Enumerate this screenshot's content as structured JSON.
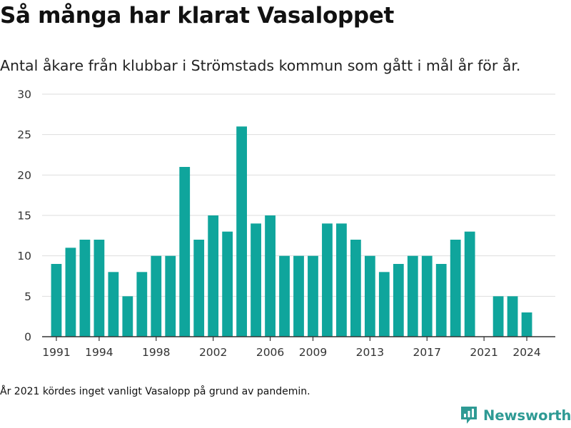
{
  "title": "Så många har klarat Vasaloppet",
  "subtitle": "Antal åkare från klubbar i Strömstads kommun som gått i mål år för år.",
  "footnote": "År 2021 kördes inget vanligt Vasalopp på grund av pandemin.",
  "brand": {
    "name": "Newsworthy",
    "icon": "newsworthy-bar-chart-icon"
  },
  "colors": {
    "bar": "#0fa59c",
    "grid": "#dddddd",
    "axis": "#333333",
    "brand": "#2e9a94"
  },
  "chart_data": {
    "type": "bar",
    "categories": [
      1991,
      1992,
      1993,
      1994,
      1995,
      1996,
      1997,
      1998,
      1999,
      2000,
      2001,
      2002,
      2003,
      2004,
      2005,
      2006,
      2007,
      2008,
      2009,
      2010,
      2011,
      2012,
      2013,
      2014,
      2015,
      2016,
      2017,
      2018,
      2019,
      2020,
      2021,
      2022,
      2023,
      2024
    ],
    "values": [
      9,
      11,
      12,
      12,
      8,
      5,
      8,
      10,
      10,
      21,
      12,
      15,
      13,
      26,
      14,
      15,
      10,
      10,
      10,
      14,
      14,
      12,
      10,
      8,
      9,
      10,
      10,
      9,
      12,
      13,
      0,
      5,
      5,
      3
    ],
    "xticks": [
      "1991",
      "1994",
      "1998",
      "2002",
      "2006",
      "2009",
      "2013",
      "2017",
      "2021",
      "2024"
    ],
    "yticks": [
      0,
      5,
      10,
      15,
      20,
      25,
      30
    ],
    "ylim": [
      0,
      30
    ],
    "xlim": [
      1990,
      2026
    ],
    "title": "Så många har klarat Vasaloppet",
    "xlabel": "",
    "ylabel": "",
    "grid": true,
    "legend": "none"
  }
}
